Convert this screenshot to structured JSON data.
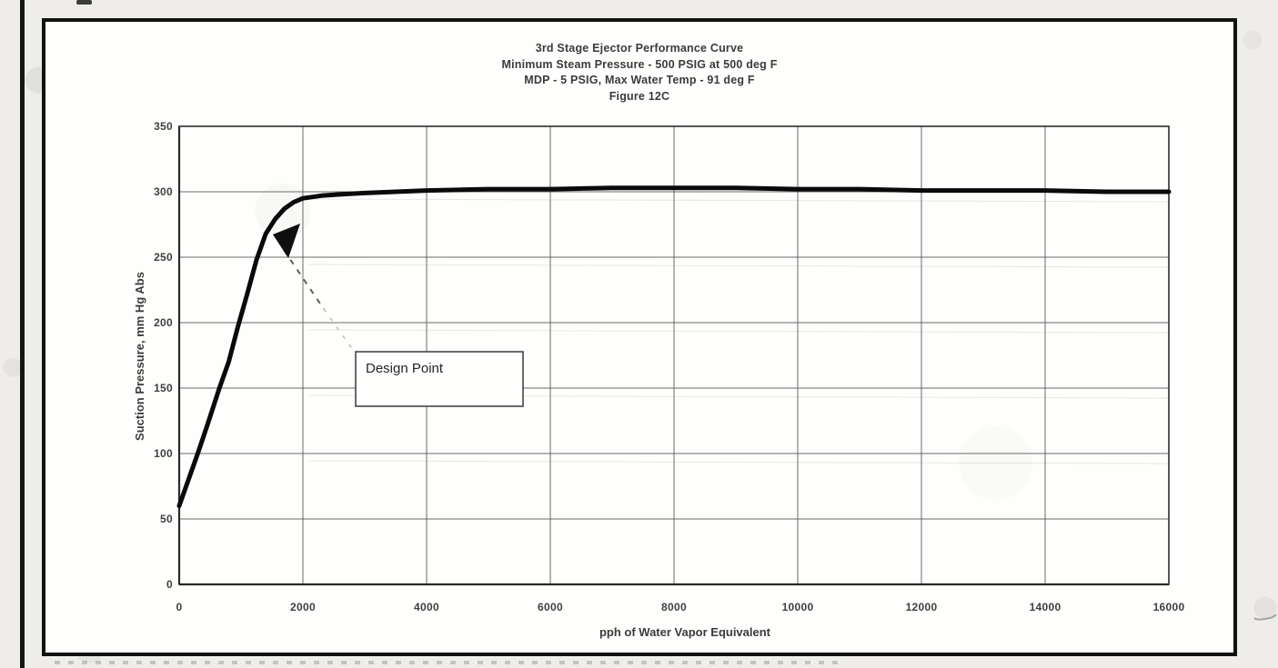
{
  "chart_data": {
    "type": "line",
    "title": "3rd Stage Ejector Performance Curve",
    "title_lines": [
      "3rd Stage Ejector Performance Curve",
      "Minimum Steam Pressure - 500 PSIG at 500 deg F",
      "MDP - 5 PSIG, Max Water Temp - 91 deg F",
      "Figure 12C"
    ],
    "xlabel": "pph of Water Vapor Equivalent",
    "ylabel": "Suction Pressure, mm Hg Abs",
    "xlim": [
      0,
      16000
    ],
    "ylim": [
      0,
      350
    ],
    "x_ticks": [
      0,
      2000,
      4000,
      6000,
      8000,
      10000,
      12000,
      14000,
      16000
    ],
    "y_ticks": [
      0,
      50,
      100,
      150,
      200,
      250,
      300,
      350
    ],
    "grid": "on (major grid every 2000 pph horizontally, every 50 mm Hg vertically)",
    "legend": "none",
    "series": [
      {
        "name": "3rd stage ejector suction pressure curve",
        "points": [
          [
            0,
            60
          ],
          [
            150,
            80
          ],
          [
            300,
            100
          ],
          [
            450,
            121
          ],
          [
            650,
            150
          ],
          [
            800,
            170
          ],
          [
            950,
            197
          ],
          [
            1100,
            222
          ],
          [
            1250,
            248
          ],
          [
            1400,
            268
          ],
          [
            1550,
            279
          ],
          [
            1700,
            287
          ],
          [
            1850,
            292
          ],
          [
            2000,
            295
          ],
          [
            2300,
            297
          ],
          [
            2600,
            298
          ],
          [
            3000,
            299
          ],
          [
            3500,
            300
          ],
          [
            4000,
            301
          ],
          [
            5000,
            302
          ],
          [
            6000,
            302
          ],
          [
            7000,
            303
          ],
          [
            8000,
            303
          ],
          [
            9000,
            303
          ],
          [
            10000,
            302
          ],
          [
            11000,
            302
          ],
          [
            12000,
            301
          ],
          [
            13000,
            301
          ],
          [
            14000,
            301
          ],
          [
            15000,
            300
          ],
          [
            16000,
            300
          ]
        ]
      }
    ],
    "annotations": [
      {
        "label": "Design Point",
        "x": 1550,
        "y": 265,
        "style": "boxed text label with dashed leader line and solid black arrowhead pointing at the knee of the curve"
      }
    ]
  },
  "colors": {
    "curve": "#0c0c0c",
    "grid": "#525252",
    "axis": "#242424",
    "text": "#3c3c3c",
    "frame_border": "#141414",
    "paper": "#eeedea",
    "plot_background": "#fcfcfa"
  },
  "scan_marks": {
    "page_edge_line": "thick black vertical scan line at far left",
    "top_smudge": "small black smudge at top edge",
    "pen_mark": "small gray curved pen mark at right margin near x-axis",
    "bottom_speckle": "faint dashed speckle row below figure frame"
  }
}
